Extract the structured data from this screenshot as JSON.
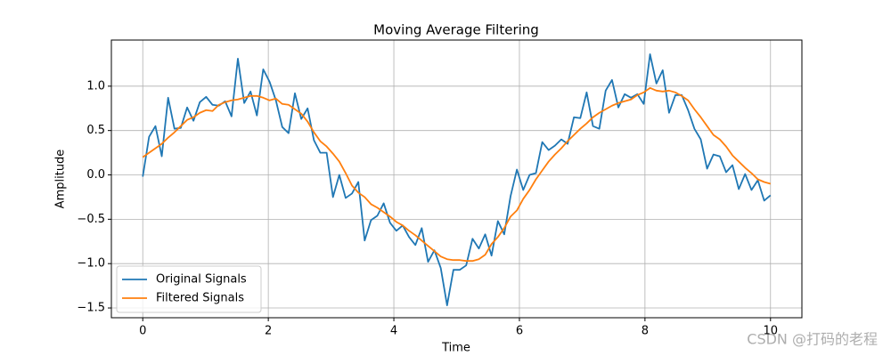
{
  "chart_data": {
    "type": "line",
    "title": "Moving Average Filtering",
    "xlabel": "Time",
    "ylabel": "Amplitude",
    "x": [
      0,
      0.101,
      0.202,
      0.303,
      0.404,
      0.505,
      0.606,
      0.707,
      0.808,
      0.909,
      1.01,
      1.111,
      1.212,
      1.313,
      1.414,
      1.515,
      1.616,
      1.717,
      1.818,
      1.919,
      2.02,
      2.121,
      2.222,
      2.323,
      2.424,
      2.525,
      2.626,
      2.727,
      2.828,
      2.929,
      3.03,
      3.131,
      3.232,
      3.333,
      3.434,
      3.535,
      3.636,
      3.737,
      3.838,
      3.939,
      4.04,
      4.141,
      4.242,
      4.343,
      4.444,
      4.545,
      4.646,
      4.747,
      4.848,
      4.949,
      5.051,
      5.152,
      5.253,
      5.354,
      5.455,
      5.556,
      5.657,
      5.758,
      5.859,
      5.96,
      6.061,
      6.162,
      6.263,
      6.364,
      6.465,
      6.566,
      6.667,
      6.768,
      6.869,
      6.97,
      7.071,
      7.172,
      7.273,
      7.374,
      7.475,
      7.576,
      7.677,
      7.778,
      7.879,
      7.98,
      8.081,
      8.182,
      8.283,
      8.384,
      8.485,
      8.586,
      8.687,
      8.788,
      8.889,
      8.99,
      9.091,
      9.192,
      9.293,
      9.394,
      9.495,
      9.596,
      9.697,
      9.798,
      9.899,
      10
    ],
    "series": [
      {
        "name": "Original Signals",
        "color": "#1f77b4",
        "values": [
          -0.02,
          0.43,
          0.55,
          0.21,
          0.87,
          0.52,
          0.53,
          0.76,
          0.61,
          0.82,
          0.88,
          0.79,
          0.78,
          0.83,
          0.66,
          1.31,
          0.81,
          0.94,
          0.67,
          1.19,
          1.05,
          0.84,
          0.54,
          0.47,
          0.92,
          0.63,
          0.75,
          0.39,
          0.25,
          0.25,
          -0.25,
          0.0,
          -0.26,
          -0.21,
          -0.08,
          -0.74,
          -0.51,
          -0.46,
          -0.32,
          -0.54,
          -0.63,
          -0.57,
          -0.7,
          -0.79,
          -0.6,
          -0.98,
          -0.85,
          -1.05,
          -1.47,
          -1.07,
          -1.07,
          -1.02,
          -0.72,
          -0.83,
          -0.67,
          -0.91,
          -0.52,
          -0.67,
          -0.24,
          0.06,
          -0.17,
          0.0,
          0.02,
          0.37,
          0.28,
          0.33,
          0.4,
          0.35,
          0.65,
          0.64,
          0.93,
          0.55,
          0.52,
          0.95,
          1.07,
          0.76,
          0.91,
          0.87,
          0.91,
          0.8,
          1.36,
          1.03,
          1.18,
          0.7,
          0.9,
          0.9,
          0.73,
          0.52,
          0.4,
          0.07,
          0.23,
          0.21,
          0.03,
          0.11,
          -0.16,
          0.01,
          -0.17,
          -0.06,
          -0.29,
          -0.23
        ]
      },
      {
        "name": "Filtered Signals",
        "color": "#ff7f0e",
        "values": [
          0.2,
          0.25,
          0.3,
          0.35,
          0.42,
          0.48,
          0.55,
          0.62,
          0.65,
          0.7,
          0.73,
          0.72,
          0.79,
          0.82,
          0.84,
          0.85,
          0.87,
          0.89,
          0.89,
          0.87,
          0.84,
          0.86,
          0.8,
          0.79,
          0.74,
          0.69,
          0.6,
          0.48,
          0.38,
          0.32,
          0.24,
          0.15,
          0.02,
          -0.12,
          -0.2,
          -0.25,
          -0.33,
          -0.37,
          -0.42,
          -0.47,
          -0.53,
          -0.57,
          -0.63,
          -0.68,
          -0.74,
          -0.8,
          -0.86,
          -0.92,
          -0.95,
          -0.96,
          -0.96,
          -0.97,
          -0.97,
          -0.95,
          -0.9,
          -0.78,
          -0.7,
          -0.6,
          -0.47,
          -0.4,
          -0.27,
          -0.17,
          -0.05,
          0.05,
          0.15,
          0.23,
          0.3,
          0.38,
          0.45,
          0.52,
          0.58,
          0.65,
          0.7,
          0.74,
          0.78,
          0.81,
          0.83,
          0.85,
          0.9,
          0.93,
          0.98,
          0.95,
          0.94,
          0.95,
          0.93,
          0.89,
          0.84,
          0.74,
          0.65,
          0.55,
          0.45,
          0.4,
          0.32,
          0.22,
          0.15,
          0.08,
          0.02,
          -0.05,
          -0.08,
          -0.1
        ]
      }
    ],
    "xlim": [
      -0.5,
      10.5
    ],
    "ylim": [
      -1.61,
      1.52
    ],
    "xticks": [
      0,
      2,
      4,
      6,
      8,
      10
    ],
    "yticks": [
      {
        "value": -1.5,
        "label": "−1.5"
      },
      {
        "value": -1.0,
        "label": "−1.0"
      },
      {
        "value": -0.5,
        "label": "−0.5"
      },
      {
        "value": 0.0,
        "label": "0.0"
      },
      {
        "value": 0.5,
        "label": "0.5"
      },
      {
        "value": 1.0,
        "label": "1.0"
      }
    ],
    "grid": true,
    "legend": "lower left"
  },
  "watermark": "CSDN @打码的老程"
}
